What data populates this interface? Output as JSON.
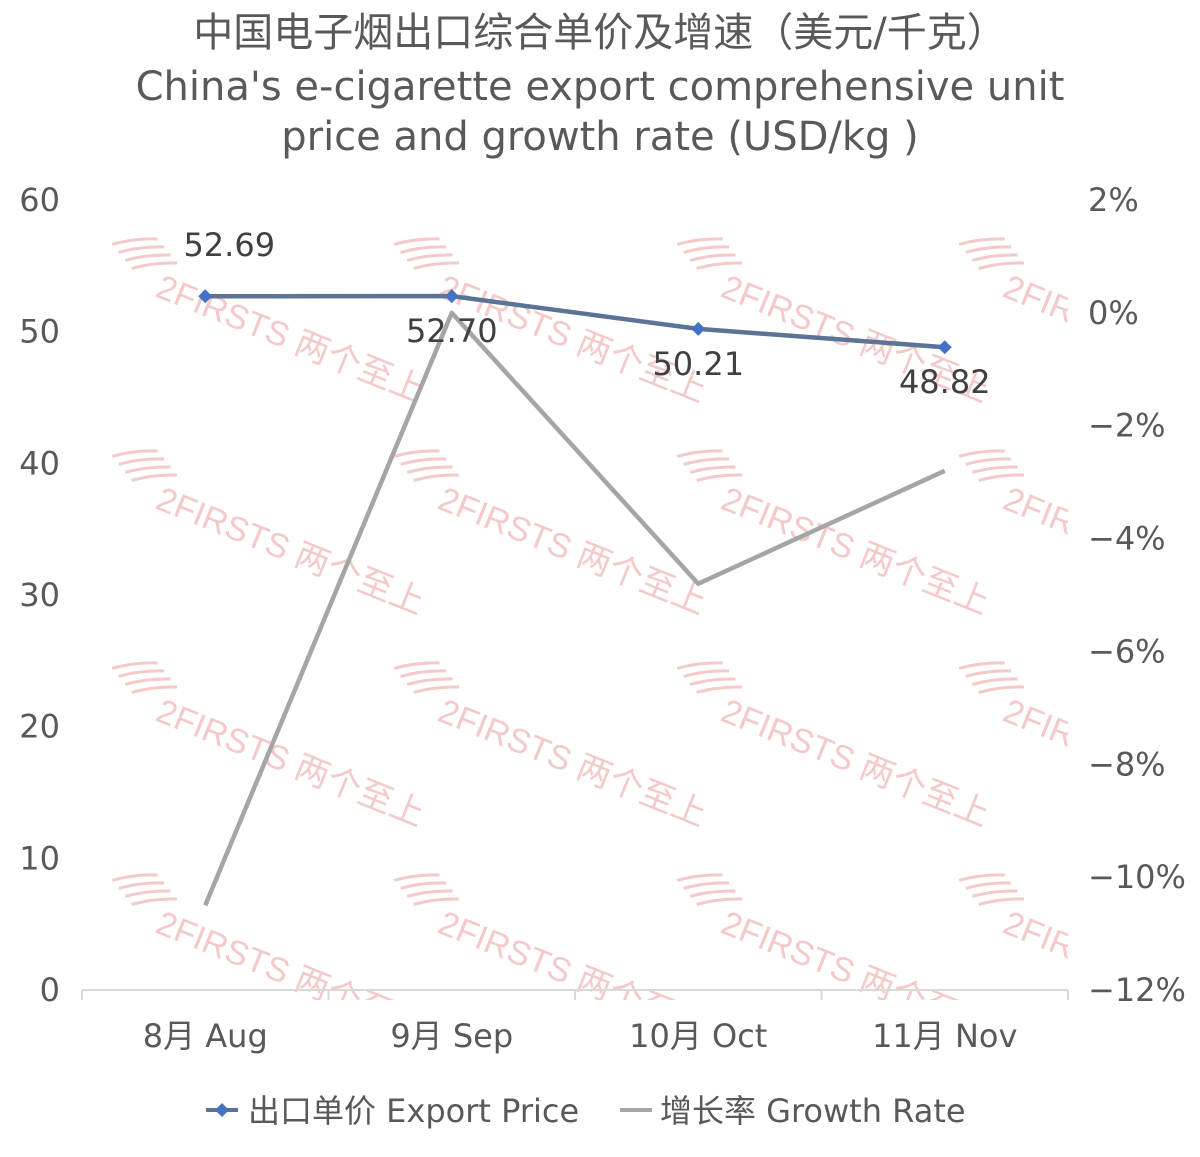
{
  "watermark": "2FIRSTS 两个至上",
  "chart_data": {
    "type": "line",
    "title": "中国电子烟出口综合单价及增速（美元/千克）",
    "subtitle_lines": [
      "China's e-cigarette export comprehensive unit",
      "price and growth rate (USD/kg )"
    ],
    "categories": [
      "8月 Aug",
      "9月 Sep",
      "10月 Oct",
      "11月 Nov"
    ],
    "series": [
      {
        "name": "出口单价 Export Price",
        "axis": "left",
        "color": "#5b7394",
        "marker_color": "#4472c4",
        "values": [
          52.69,
          52.7,
          50.21,
          48.82
        ],
        "data_labels": [
          "52.69",
          "52.70",
          "50.21",
          "48.82"
        ]
      },
      {
        "name": "增长率 Growth Rate",
        "axis": "right",
        "color": "#a5a5a5",
        "values": [
          -10.5,
          0.0,
          -4.8,
          -2.8
        ]
      }
    ],
    "y_left": {
      "min": 0,
      "max": 60,
      "ticks": [
        "0",
        "10",
        "20",
        "30",
        "40",
        "50",
        "60"
      ]
    },
    "y_right": {
      "min": -12,
      "max": 2,
      "ticks": [
        "-12%",
        "-10%",
        "-8%",
        "-6%",
        "-4%",
        "-2%",
        "0%",
        "2%"
      ]
    },
    "grid": false,
    "legend_position": "bottom"
  }
}
